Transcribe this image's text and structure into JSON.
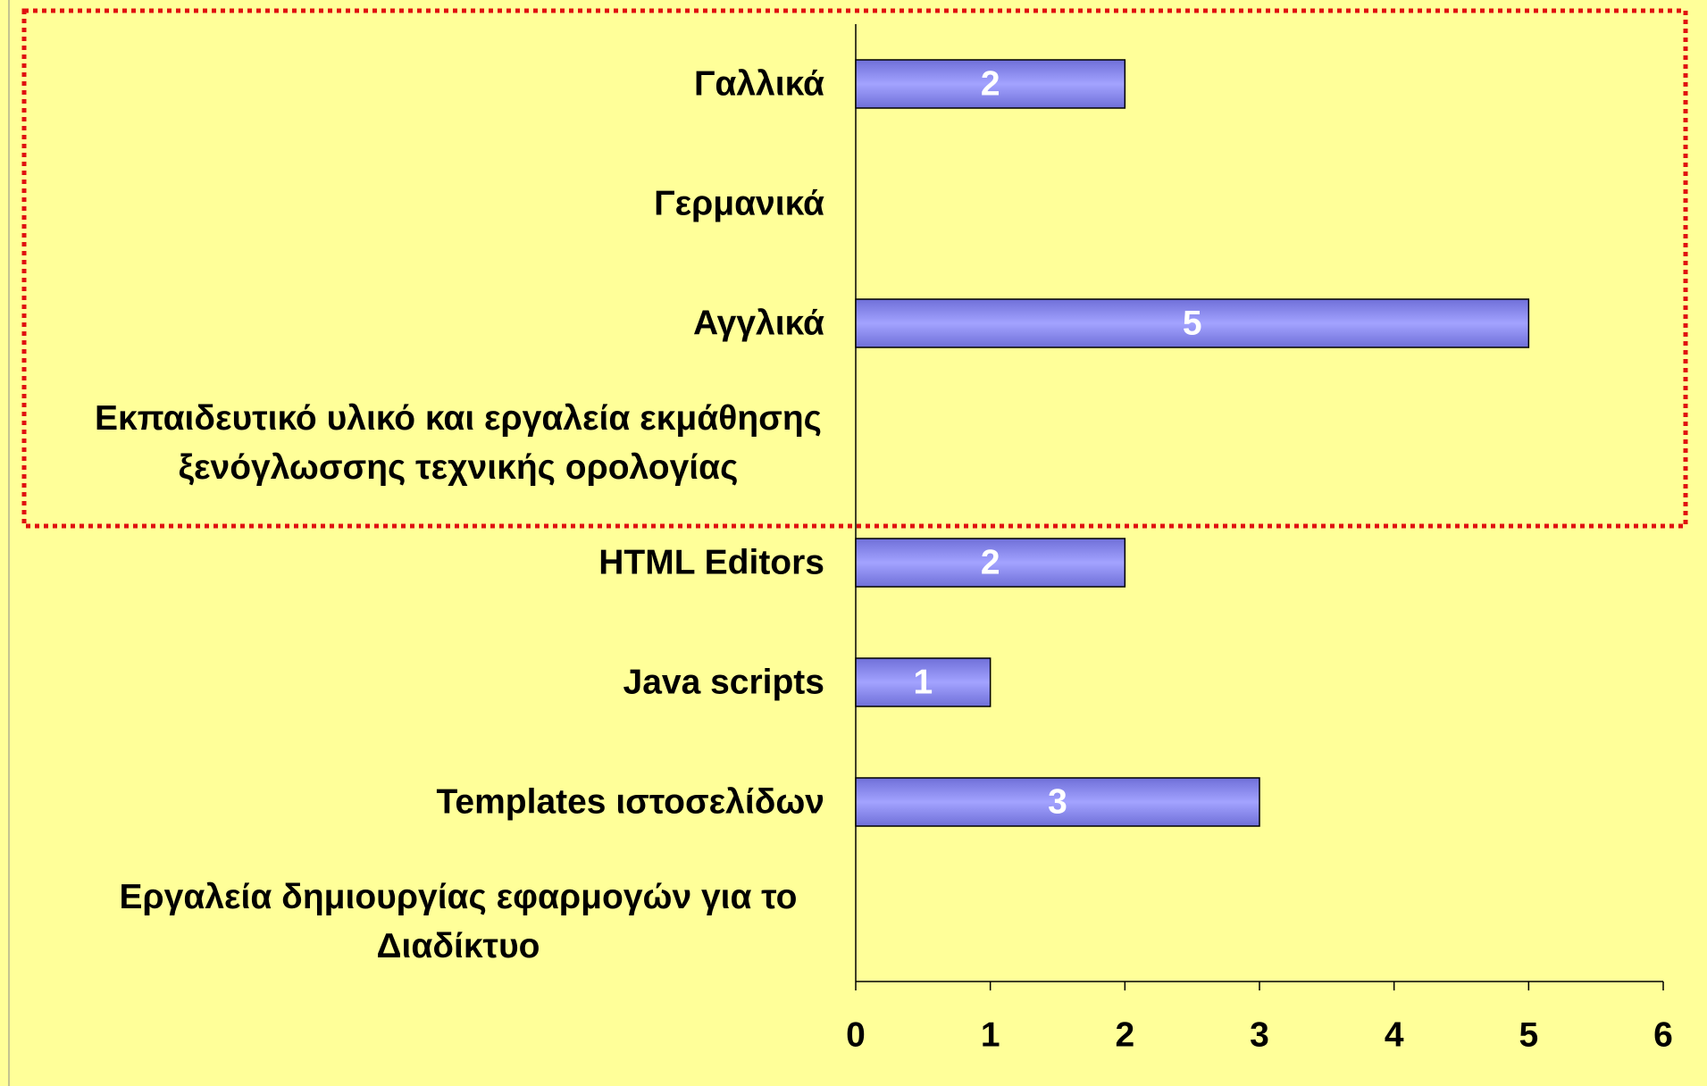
{
  "chart_data": {
    "type": "bar",
    "orientation": "horizontal",
    "categories": [
      "Γαλλικά",
      "Γερμανικά",
      "Αγγλικά",
      "Εκπαιδευτικό υλικό και εργαλεία εκμάθησης ξενόγλωσσης τεχνικής ορολογίας",
      "HTML Editors",
      "Java scripts",
      "Templates ιστοσελίδων",
      "Εργαλεία δημιουργίας εφαρμογών για το Διαδίκτυο"
    ],
    "values": [
      2,
      null,
      5,
      null,
      2,
      1,
      3,
      null
    ],
    "color": "#8c8cf5",
    "xlim": [
      0,
      6
    ],
    "xticks": [
      0,
      1,
      2,
      3,
      4,
      5,
      6
    ],
    "grid": false
  }
}
